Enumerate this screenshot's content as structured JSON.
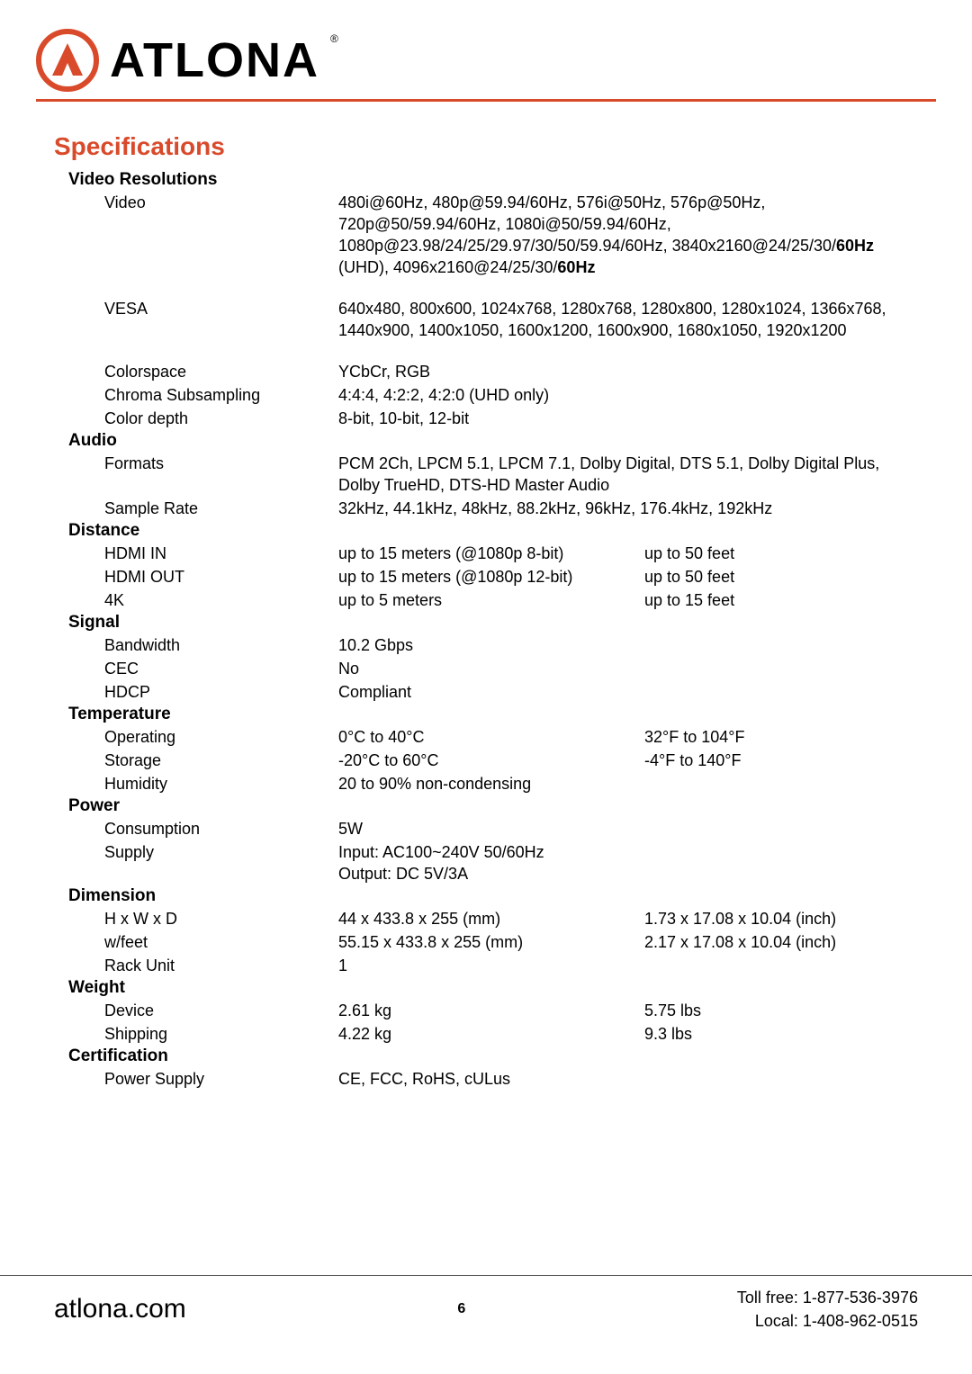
{
  "brand": {
    "logo_text": "ATLONA",
    "accent_color": "#d94a2b"
  },
  "page_title": "Specifications",
  "sections": [
    {
      "heading": "Video Resolutions",
      "rows": [
        {
          "label": "Video",
          "wide": true,
          "v1_html": "480i@60Hz, 480p@59.94/60Hz, 576i@50Hz, 576p@50Hz, 720p@50/59.94/60Hz, 1080i@50/59.94/60Hz, 1080p@23.98/24/25/29.97/30/50/59.94/60Hz, 3840x2160@24/25/30/<b>60Hz</b> (UHD), 4096x2160@24/25/30/<b>60Hz</b>"
        },
        {
          "gap": true
        },
        {
          "label": "VESA",
          "wide": true,
          "v1": "640x480, 800x600, 1024x768, 1280x768, 1280x800, 1280x1024, 1366x768, 1440x900, 1400x1050, 1600x1200, 1600x900, 1680x1050, 1920x1200"
        },
        {
          "gap": true
        },
        {
          "label": "Colorspace",
          "wide": true,
          "v1": "YCbCr, RGB"
        },
        {
          "label": "Chroma Subsampling",
          "wide": true,
          "v1": "4:4:4, 4:2:2, 4:2:0 (UHD only)"
        },
        {
          "label": "Color depth",
          "wide": true,
          "v1": "8-bit, 10-bit, 12-bit"
        }
      ]
    },
    {
      "heading": "Audio",
      "rows": [
        {
          "label": "Formats",
          "wide": true,
          "v1": "PCM 2Ch, LPCM 5.1, LPCM 7.1, Dolby Digital, DTS 5.1, Dolby Digital Plus, Dolby TrueHD, DTS-HD Master Audio"
        },
        {
          "label": "Sample Rate",
          "wide": true,
          "v1": "32kHz, 44.1kHz, 48kHz, 88.2kHz, 96kHz, 176.4kHz, 192kHz"
        }
      ]
    },
    {
      "heading": "Distance",
      "rows": [
        {
          "label": "HDMI IN",
          "v1": "up to 15 meters (@1080p 8-bit)",
          "v2": "up to 50 feet"
        },
        {
          "label": "HDMI OUT",
          "v1": "up to 15 meters (@1080p 12-bit)",
          "v2": "up to 50 feet"
        },
        {
          "label": "4K",
          "v1": "up to 5 meters",
          "v2": "up to 15 feet"
        }
      ]
    },
    {
      "heading": "Signal",
      "rows": [
        {
          "label": "Bandwidth",
          "wide": true,
          "v1": "10.2 Gbps"
        },
        {
          "label": "CEC",
          "wide": true,
          "v1": "No"
        },
        {
          "label": "HDCP",
          "wide": true,
          "v1": "Compliant"
        }
      ]
    },
    {
      "heading": "Temperature",
      "rows": [
        {
          "label": "Operating",
          "v1": "0°C to 40°C",
          "v2": "32°F to 104°F"
        },
        {
          "label": "Storage",
          "v1": "-20°C to 60°C",
          "v2": "-4°F to 140°F"
        },
        {
          "label": "Humidity",
          "wide": true,
          "v1": "20 to 90% non-condensing"
        }
      ]
    },
    {
      "heading": "Power",
      "rows": [
        {
          "label": "Consumption",
          "wide": true,
          "v1": "5W"
        },
        {
          "label": "Supply",
          "wide": true,
          "v1": "Input:  AC100~240V 50/60Hz\nOutput:  DC 5V/3A"
        }
      ]
    },
    {
      "heading": "Dimension",
      "rows": [
        {
          "label": "H x W x D",
          "v1": "44 x 433.8 x 255 (mm)",
          "v2": "1.73 x 17.08 x 10.04 (inch)"
        },
        {
          "label": "w/feet",
          "v1": "55.15 x 433.8 x 255 (mm)",
          "v2": "2.17 x 17.08 x 10.04 (inch)"
        },
        {
          "label": "Rack Unit",
          "wide": true,
          "v1": "1"
        }
      ]
    },
    {
      "heading": "Weight",
      "rows": [
        {
          "label": "Device",
          "v1": "2.61 kg",
          "v2": "5.75 lbs"
        },
        {
          "label": "Shipping",
          "v1": "4.22 kg",
          "v2": "9.3 lbs"
        }
      ]
    },
    {
      "heading": "Certification",
      "rows": [
        {
          "label": "Power Supply",
          "wide": true,
          "v1": "CE, FCC, RoHS, cULus"
        }
      ]
    }
  ],
  "footer": {
    "site": "atlona.com",
    "page_number": "6",
    "toll_free": "Toll free: 1-877-536-3976",
    "local": "Local: 1-408-962-0515"
  }
}
